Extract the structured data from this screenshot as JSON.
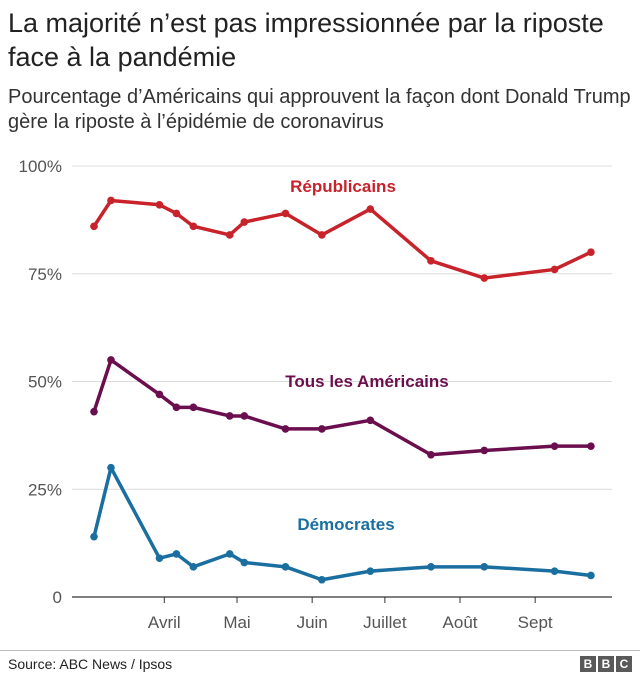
{
  "header": {
    "title": "La majorité n’est pas impressionnée par la riposte face à la pandémie",
    "subtitle": "Pourcentage d’Américains qui approuvent la façon dont Donald Trump gère la riposte à l’épidémie de coronavirus"
  },
  "footer": {
    "source": "Source: ABC News / Ipsos",
    "logo_letters": [
      "B",
      "B",
      "C"
    ]
  },
  "chart_data": {
    "type": "line",
    "ylim": [
      0,
      100
    ],
    "y_ticks": [
      0,
      25,
      50,
      75,
      100
    ],
    "y_tick_labels": [
      "0",
      "25%",
      "50%",
      "75%",
      "100%"
    ],
    "x_day_range": [
      0,
      190
    ],
    "x_ticks": [
      {
        "label": "Avril",
        "day": 32
      },
      {
        "label": "Mai",
        "day": 62
      },
      {
        "label": "Juin",
        "day": 93
      },
      {
        "label": "Juillet",
        "day": 123
      },
      {
        "label": "Août",
        "day": 154
      },
      {
        "label": "Sept",
        "day": 185
      }
    ],
    "x_days": [
      3,
      10,
      30,
      37,
      44,
      59,
      65,
      82,
      97,
      117,
      142,
      164,
      193,
      208
    ],
    "series": [
      {
        "name": "Républicains",
        "color": "#c8222b",
        "values": [
          86,
          92,
          91,
          89,
          86,
          84,
          87,
          89,
          84,
          90,
          78,
          74,
          76,
          80
        ]
      },
      {
        "name": "Tous les Américains",
        "color": "#6b0e4e",
        "values": [
          43,
          55,
          47,
          44,
          44,
          42,
          42,
          39,
          39,
          41,
          33,
          34,
          35,
          35
        ]
      },
      {
        "name": "Démocrates",
        "color": "#1a6fa0",
        "values": [
          14,
          30,
          9,
          10,
          7,
          10,
          8,
          7,
          4,
          6,
          7,
          7,
          6,
          5
        ]
      }
    ]
  }
}
